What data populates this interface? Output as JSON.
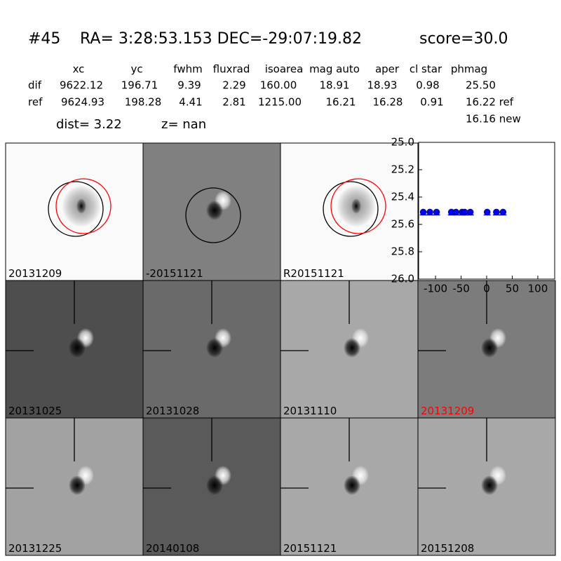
{
  "header": {
    "id": "#45",
    "coords": "RA= 3:28:53.153 DEC=-29:07:19.82",
    "score": "score=30.0"
  },
  "table": {
    "columns": [
      "xc",
      "yc",
      "fwhm",
      "fluxrad",
      "isoarea",
      "mag auto",
      "aper",
      "cl star",
      "phmag"
    ],
    "rows": [
      [
        "dif",
        "9622.12",
        "196.71",
        "9.39",
        "2.29",
        "160.00",
        "18.91",
        "18.93",
        "0.98",
        "25.50"
      ],
      [
        "ref",
        "9624.93",
        "198.28",
        "4.41",
        "2.81",
        "1215.00",
        "16.21",
        "16.28",
        "0.91",
        "16.22 ref"
      ]
    ],
    "extra": "16.16 new"
  },
  "dist": "dist=  3.22",
  "z": "z=   nan",
  "stamps": [
    "20131209",
    "-20151121",
    "R20151121",
    "20131025",
    "20131028",
    "20131110",
    "20131209",
    "20131225",
    "20140108",
    "20151121",
    "20151208"
  ],
  "chart_data": {
    "type": "scatter",
    "color": "#0000ff",
    "x": [
      -124,
      -111,
      -98,
      -69,
      -60,
      -48,
      -43,
      -32,
      1,
      19,
      32
    ],
    "values": [
      25.51,
      25.51,
      25.51,
      25.51,
      25.51,
      25.51,
      25.51,
      25.51,
      25.51,
      25.51,
      25.51
    ],
    "xlim": [
      -133,
      133
    ],
    "xticks": [
      -100,
      -50,
      0,
      50,
      100
    ],
    "ylim": [
      26,
      25
    ],
    "yticks": [
      {
        "value": 25,
        "label": "25.0"
      },
      25.2,
      25.4,
      25.6,
      25.8,
      {
        "value": 26,
        "label": "26.0"
      }
    ]
  }
}
